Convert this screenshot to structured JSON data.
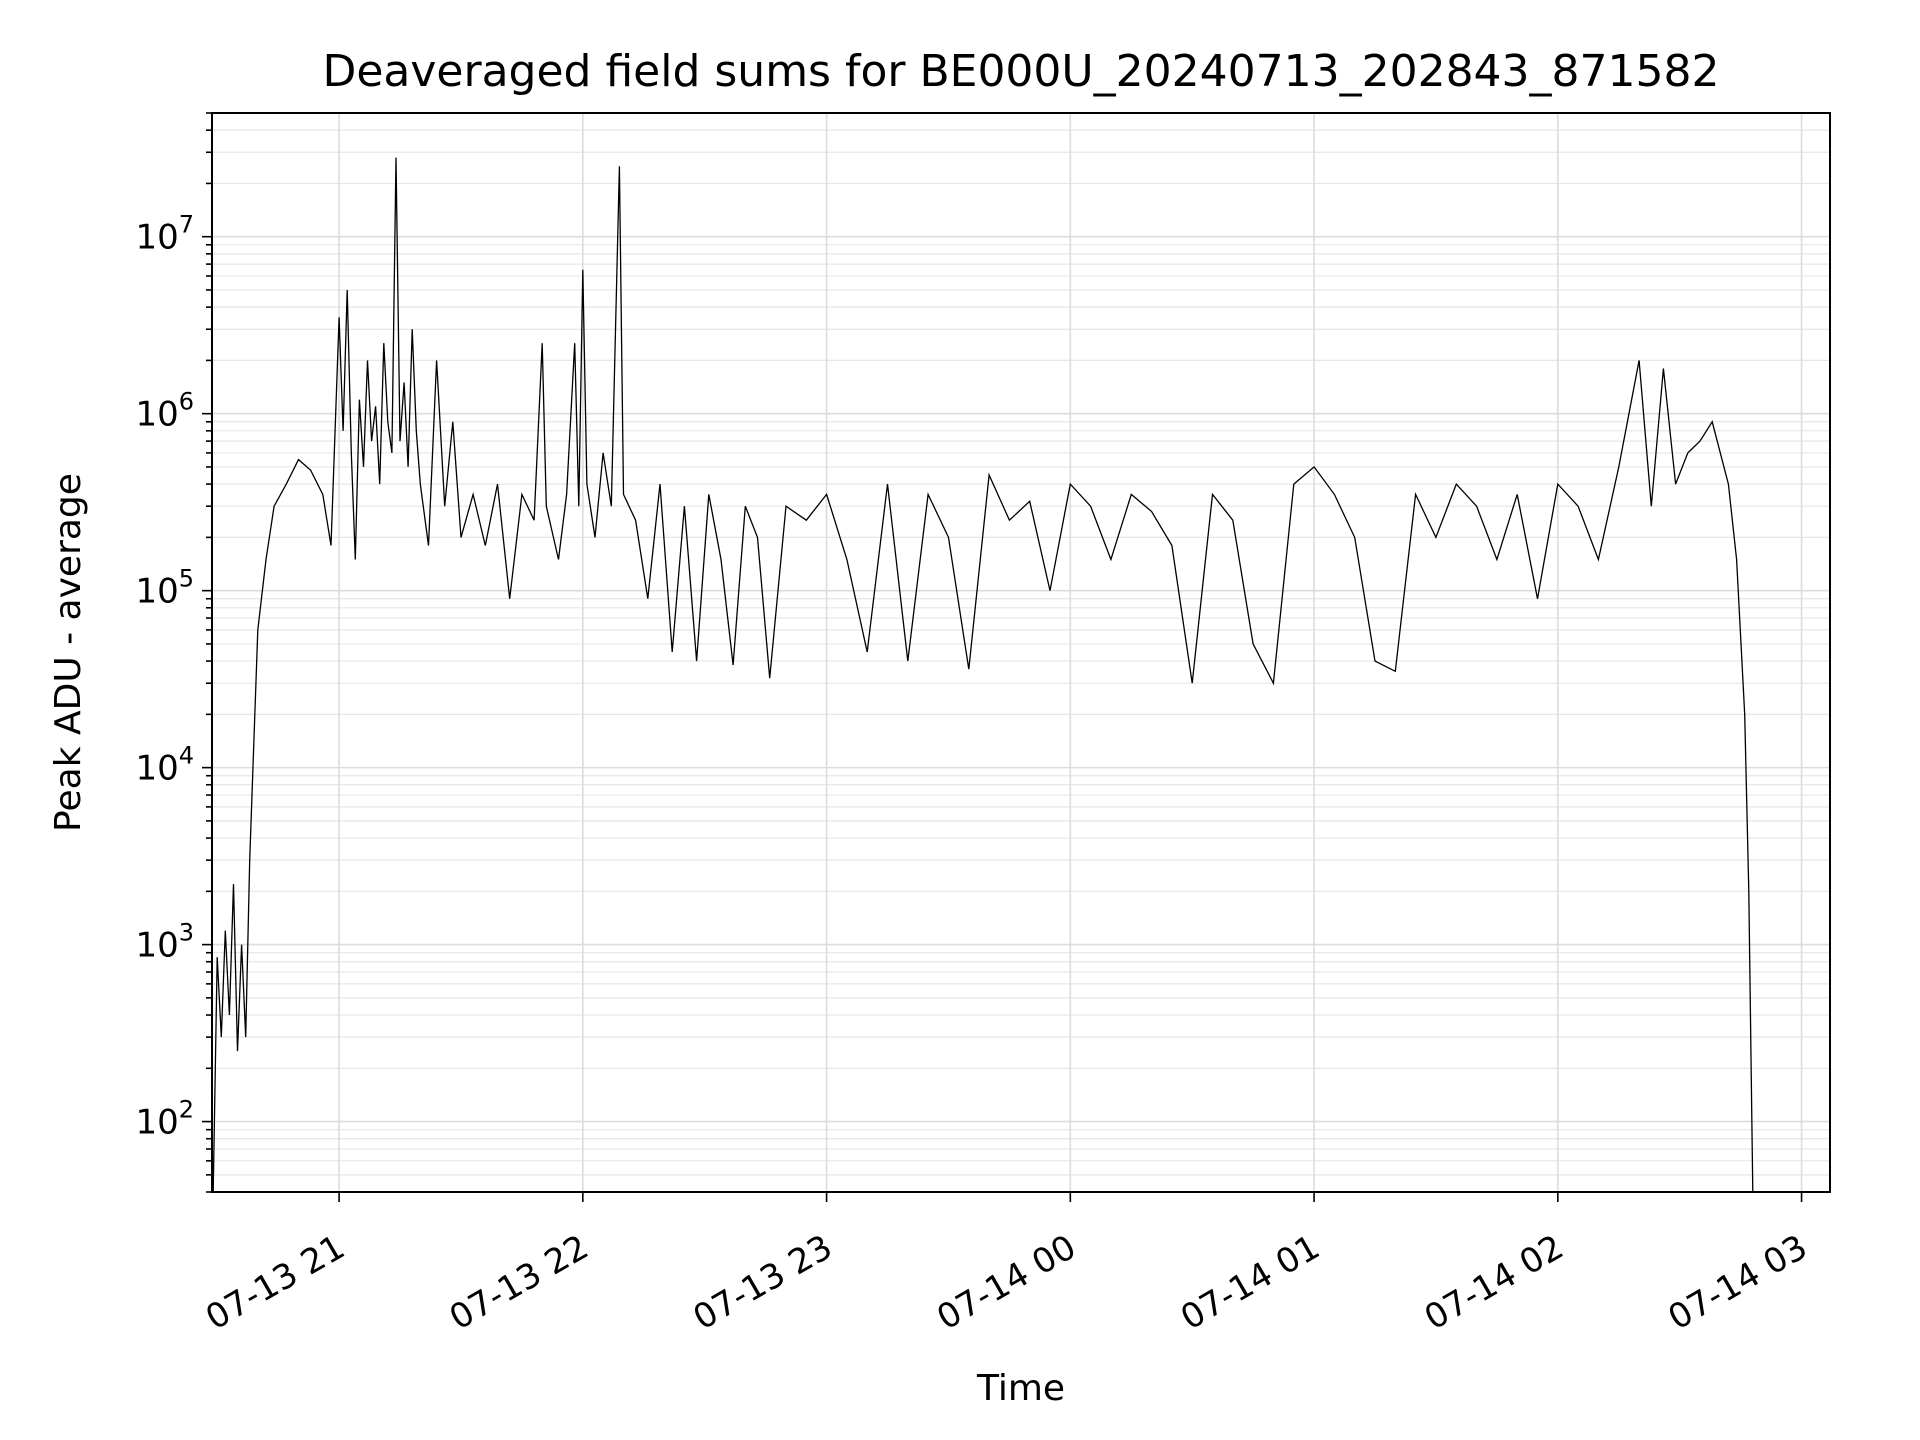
{
  "chart_data": {
    "type": "line",
    "title": "Deaveraged field sums for BE000U_20240713_202843_871582",
    "xlabel": "Time",
    "ylabel": "Peak ADU - average",
    "yscale": "log",
    "grid": "on (major and minor)",
    "legend": "none",
    "line_color": "#000000",
    "x_range": [
      "2024-07-13 20:28:43",
      "2024-07-14 03:07:00"
    ],
    "y_range": [
      40,
      50000000
    ],
    "x_tick_labels": [
      "07-13 21",
      "07-13 22",
      "07-13 23",
      "07-14 00",
      "07-14 01",
      "07-14 02",
      "07-14 03"
    ],
    "x_tick_times": [
      "2024-07-13 21:00",
      "2024-07-13 22:00",
      "2024-07-13 23:00",
      "2024-07-14 00:00",
      "2024-07-14 01:00",
      "2024-07-14 02:00",
      "2024-07-14 03:00"
    ],
    "y_ticks": [
      {
        "value": 100,
        "label_base": "10",
        "label_exp": "2"
      },
      {
        "value": 1000,
        "label_base": "10",
        "label_exp": "3"
      },
      {
        "value": 10000,
        "label_base": "10",
        "label_exp": "4"
      },
      {
        "value": 100000,
        "label_base": "10",
        "label_exp": "5"
      },
      {
        "value": 1000000,
        "label_base": "10",
        "label_exp": "6"
      },
      {
        "value": 10000000,
        "label_base": "10",
        "label_exp": "7"
      }
    ],
    "series": [
      {
        "points": [
          [
            "2024-07-13 20:29",
            40
          ],
          [
            "2024-07-13 20:30",
            850
          ],
          [
            "2024-07-13 20:31",
            300
          ],
          [
            "2024-07-13 20:32",
            1200
          ],
          [
            "2024-07-13 20:33",
            400
          ],
          [
            "2024-07-13 20:34",
            2200
          ],
          [
            "2024-07-13 20:35",
            250
          ],
          [
            "2024-07-13 20:36",
            1000
          ],
          [
            "2024-07-13 20:37",
            300
          ],
          [
            "2024-07-13 20:38",
            3000
          ],
          [
            "2024-07-13 20:40",
            60000
          ],
          [
            "2024-07-13 20:42",
            150000
          ],
          [
            "2024-07-13 20:44",
            300000
          ],
          [
            "2024-07-13 20:47",
            400000
          ],
          [
            "2024-07-13 20:50",
            550000
          ],
          [
            "2024-07-13 20:53",
            480000
          ],
          [
            "2024-07-13 20:56",
            350000
          ],
          [
            "2024-07-13 20:58",
            180000
          ],
          [
            "2024-07-13 21:00",
            3500000
          ],
          [
            "2024-07-13 21:01",
            800000
          ],
          [
            "2024-07-13 21:02",
            5000000
          ],
          [
            "2024-07-13 21:03",
            600000
          ],
          [
            "2024-07-13 21:04",
            150000
          ],
          [
            "2024-07-13 21:05",
            1200000
          ],
          [
            "2024-07-13 21:06",
            500000
          ],
          [
            "2024-07-13 21:07",
            2000000
          ],
          [
            "2024-07-13 21:08",
            700000
          ],
          [
            "2024-07-13 21:09",
            1100000
          ],
          [
            "2024-07-13 21:10",
            400000
          ],
          [
            "2024-07-13 21:11",
            2500000
          ],
          [
            "2024-07-13 21:12",
            900000
          ],
          [
            "2024-07-13 21:13",
            600000
          ],
          [
            "2024-07-13 21:14",
            28000000
          ],
          [
            "2024-07-13 21:15",
            700000
          ],
          [
            "2024-07-13 21:16",
            1500000
          ],
          [
            "2024-07-13 21:17",
            500000
          ],
          [
            "2024-07-13 21:18",
            3000000
          ],
          [
            "2024-07-13 21:19",
            800000
          ],
          [
            "2024-07-13 21:20",
            400000
          ],
          [
            "2024-07-13 21:22",
            180000
          ],
          [
            "2024-07-13 21:24",
            2000000
          ],
          [
            "2024-07-13 21:26",
            300000
          ],
          [
            "2024-07-13 21:28",
            900000
          ],
          [
            "2024-07-13 21:30",
            200000
          ],
          [
            "2024-07-13 21:33",
            350000
          ],
          [
            "2024-07-13 21:36",
            180000
          ],
          [
            "2024-07-13 21:39",
            400000
          ],
          [
            "2024-07-13 21:42",
            90000
          ],
          [
            "2024-07-13 21:45",
            350000
          ],
          [
            "2024-07-13 21:48",
            250000
          ],
          [
            "2024-07-13 21:50",
            2500000
          ],
          [
            "2024-07-13 21:51",
            300000
          ],
          [
            "2024-07-13 21:54",
            150000
          ],
          [
            "2024-07-13 21:56",
            350000
          ],
          [
            "2024-07-13 21:58",
            2500000
          ],
          [
            "2024-07-13 21:59",
            300000
          ],
          [
            "2024-07-13 22:00",
            6500000
          ],
          [
            "2024-07-13 22:01",
            400000
          ],
          [
            "2024-07-13 22:03",
            200000
          ],
          [
            "2024-07-13 22:05",
            600000
          ],
          [
            "2024-07-13 22:07",
            300000
          ],
          [
            "2024-07-13 22:09",
            25000000
          ],
          [
            "2024-07-13 22:10",
            350000
          ],
          [
            "2024-07-13 22:13",
            250000
          ],
          [
            "2024-07-13 22:16",
            90000
          ],
          [
            "2024-07-13 22:19",
            400000
          ],
          [
            "2024-07-13 22:22",
            45000
          ],
          [
            "2024-07-13 22:25",
            300000
          ],
          [
            "2024-07-13 22:28",
            40000
          ],
          [
            "2024-07-13 22:31",
            350000
          ],
          [
            "2024-07-13 22:34",
            150000
          ],
          [
            "2024-07-13 22:37",
            38000
          ],
          [
            "2024-07-13 22:40",
            300000
          ],
          [
            "2024-07-13 22:43",
            200000
          ],
          [
            "2024-07-13 22:46",
            32000
          ],
          [
            "2024-07-13 22:50",
            300000
          ],
          [
            "2024-07-13 22:55",
            250000
          ],
          [
            "2024-07-13 23:00",
            350000
          ],
          [
            "2024-07-13 23:05",
            150000
          ],
          [
            "2024-07-13 23:10",
            45000
          ],
          [
            "2024-07-13 23:15",
            400000
          ],
          [
            "2024-07-13 23:20",
            40000
          ],
          [
            "2024-07-13 23:25",
            350000
          ],
          [
            "2024-07-13 23:30",
            200000
          ],
          [
            "2024-07-13 23:35",
            36000
          ],
          [
            "2024-07-13 23:40",
            450000
          ],
          [
            "2024-07-13 23:45",
            250000
          ],
          [
            "2024-07-13 23:50",
            320000
          ],
          [
            "2024-07-13 23:55",
            100000
          ],
          [
            "2024-07-14 00:00",
            400000
          ],
          [
            "2024-07-14 00:05",
            300000
          ],
          [
            "2024-07-14 00:10",
            150000
          ],
          [
            "2024-07-14 00:15",
            350000
          ],
          [
            "2024-07-14 00:20",
            280000
          ],
          [
            "2024-07-14 00:25",
            180000
          ],
          [
            "2024-07-14 00:30",
            30000
          ],
          [
            "2024-07-14 00:35",
            350000
          ],
          [
            "2024-07-14 00:40",
            250000
          ],
          [
            "2024-07-14 00:45",
            50000
          ],
          [
            "2024-07-14 00:50",
            30000
          ],
          [
            "2024-07-14 00:55",
            400000
          ],
          [
            "2024-07-14 01:00",
            500000
          ],
          [
            "2024-07-14 01:05",
            350000
          ],
          [
            "2024-07-14 01:10",
            200000
          ],
          [
            "2024-07-14 01:15",
            40000
          ],
          [
            "2024-07-14 01:20",
            35000
          ],
          [
            "2024-07-14 01:25",
            350000
          ],
          [
            "2024-07-14 01:30",
            200000
          ],
          [
            "2024-07-14 01:35",
            400000
          ],
          [
            "2024-07-14 01:40",
            300000
          ],
          [
            "2024-07-14 01:45",
            150000
          ],
          [
            "2024-07-14 01:50",
            350000
          ],
          [
            "2024-07-14 01:55",
            90000
          ],
          [
            "2024-07-14 02:00",
            400000
          ],
          [
            "2024-07-14 02:05",
            300000
          ],
          [
            "2024-07-14 02:10",
            150000
          ],
          [
            "2024-07-14 02:15",
            500000
          ],
          [
            "2024-07-14 02:20",
            2000000
          ],
          [
            "2024-07-14 02:23",
            300000
          ],
          [
            "2024-07-14 02:26",
            1800000
          ],
          [
            "2024-07-14 02:29",
            400000
          ],
          [
            "2024-07-14 02:32",
            600000
          ],
          [
            "2024-07-14 02:35",
            700000
          ],
          [
            "2024-07-14 02:38",
            900000
          ],
          [
            "2024-07-14 02:40",
            600000
          ],
          [
            "2024-07-14 02:42",
            400000
          ],
          [
            "2024-07-14 02:44",
            150000
          ],
          [
            "2024-07-14 02:46",
            20000
          ],
          [
            "2024-07-14 02:47",
            2000
          ],
          [
            "2024-07-14 02:48",
            40
          ]
        ]
      }
    ]
  }
}
